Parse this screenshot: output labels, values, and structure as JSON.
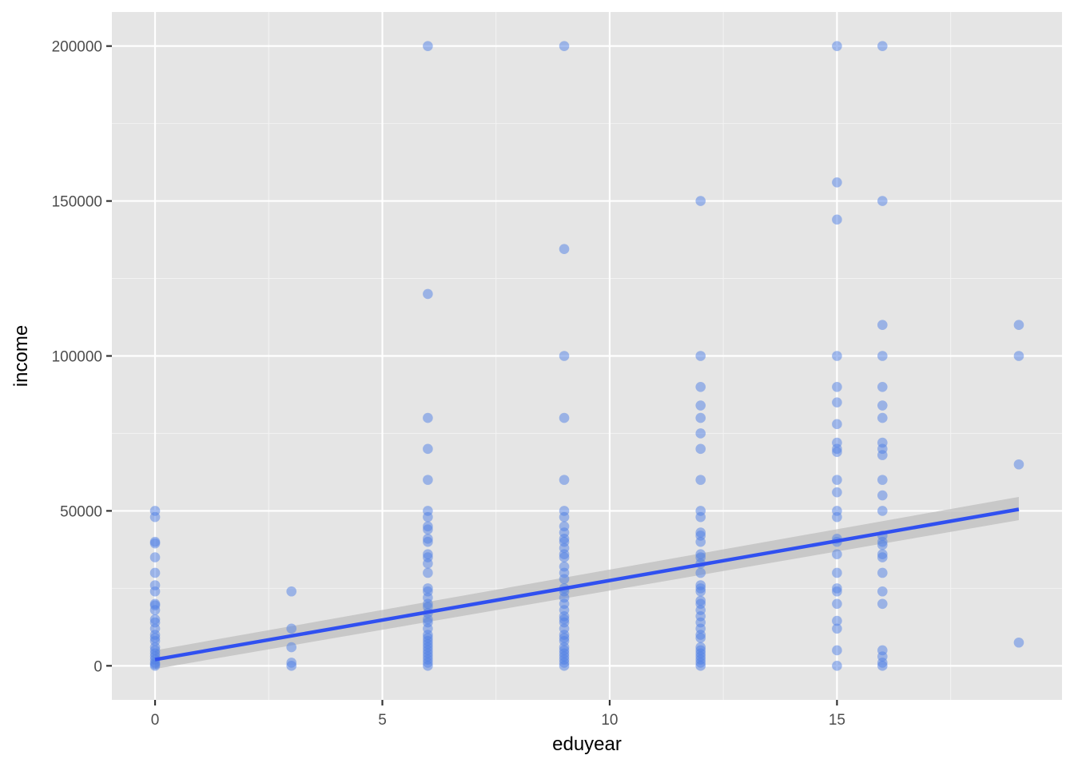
{
  "chart_data": {
    "type": "scatter",
    "xlabel": "eduyear",
    "ylabel": "income",
    "xlim": [
      -0.95,
      19.95
    ],
    "ylim": [
      -11000,
      211000
    ],
    "x_ticks": [
      0,
      5,
      10,
      15
    ],
    "x_tick_labels": [
      "0",
      "5",
      "10",
      "15"
    ],
    "y_ticks": [
      0,
      50000,
      100000,
      150000,
      200000
    ],
    "y_tick_labels": [
      "0",
      "50000",
      "100000",
      "150000",
      "200000"
    ],
    "grid": true,
    "legend": "none",
    "colors": {
      "panel": "#e5e5e5",
      "grid_major": "#ffffff",
      "point": "#4f7fe6",
      "fit_line": "#3050f0",
      "confidence_band": "#bdbdbd"
    },
    "points": [
      {
        "x": 0,
        "y": 50000
      },
      {
        "x": 0,
        "y": 48000
      },
      {
        "x": 0,
        "y": 40000
      },
      {
        "x": 0,
        "y": 39500
      },
      {
        "x": 0,
        "y": 35000
      },
      {
        "x": 0,
        "y": 30000
      },
      {
        "x": 0,
        "y": 26000
      },
      {
        "x": 0,
        "y": 24000
      },
      {
        "x": 0,
        "y": 20000
      },
      {
        "x": 0,
        "y": 19500
      },
      {
        "x": 0,
        "y": 18000
      },
      {
        "x": 0,
        "y": 15000
      },
      {
        "x": 0,
        "y": 14000
      },
      {
        "x": 0,
        "y": 12000
      },
      {
        "x": 0,
        "y": 10000
      },
      {
        "x": 0,
        "y": 9000
      },
      {
        "x": 0,
        "y": 8000
      },
      {
        "x": 0,
        "y": 6000
      },
      {
        "x": 0,
        "y": 5000
      },
      {
        "x": 0,
        "y": 4000
      },
      {
        "x": 0,
        "y": 3000
      },
      {
        "x": 0,
        "y": 2000
      },
      {
        "x": 0,
        "y": 1000
      },
      {
        "x": 0,
        "y": 500
      },
      {
        "x": 0,
        "y": 0
      },
      {
        "x": 3,
        "y": 24000
      },
      {
        "x": 3,
        "y": 12000
      },
      {
        "x": 3,
        "y": 6000
      },
      {
        "x": 3,
        "y": 1000
      },
      {
        "x": 3,
        "y": 0
      },
      {
        "x": 6,
        "y": 200000
      },
      {
        "x": 6,
        "y": 120000
      },
      {
        "x": 6,
        "y": 80000
      },
      {
        "x": 6,
        "y": 70000
      },
      {
        "x": 6,
        "y": 60000
      },
      {
        "x": 6,
        "y": 50000
      },
      {
        "x": 6,
        "y": 48000
      },
      {
        "x": 6,
        "y": 45000
      },
      {
        "x": 6,
        "y": 44000
      },
      {
        "x": 6,
        "y": 41000
      },
      {
        "x": 6,
        "y": 40000
      },
      {
        "x": 6,
        "y": 36000
      },
      {
        "x": 6,
        "y": 35000
      },
      {
        "x": 6,
        "y": 33000
      },
      {
        "x": 6,
        "y": 30000
      },
      {
        "x": 6,
        "y": 25000
      },
      {
        "x": 6,
        "y": 24000
      },
      {
        "x": 6,
        "y": 22000
      },
      {
        "x": 6,
        "y": 20000
      },
      {
        "x": 6,
        "y": 19000
      },
      {
        "x": 6,
        "y": 17000
      },
      {
        "x": 6,
        "y": 15000
      },
      {
        "x": 6,
        "y": 14000
      },
      {
        "x": 6,
        "y": 12000
      },
      {
        "x": 6,
        "y": 10000
      },
      {
        "x": 6,
        "y": 9000
      },
      {
        "x": 6,
        "y": 8000
      },
      {
        "x": 6,
        "y": 7000
      },
      {
        "x": 6,
        "y": 6000
      },
      {
        "x": 6,
        "y": 5000
      },
      {
        "x": 6,
        "y": 4000
      },
      {
        "x": 6,
        "y": 3000
      },
      {
        "x": 6,
        "y": 2000
      },
      {
        "x": 6,
        "y": 1000
      },
      {
        "x": 6,
        "y": 0
      },
      {
        "x": 9,
        "y": 200000
      },
      {
        "x": 9,
        "y": 134500
      },
      {
        "x": 9,
        "y": 100000
      },
      {
        "x": 9,
        "y": 80000
      },
      {
        "x": 9,
        "y": 60000
      },
      {
        "x": 9,
        "y": 50000
      },
      {
        "x": 9,
        "y": 48000
      },
      {
        "x": 9,
        "y": 45000
      },
      {
        "x": 9,
        "y": 43000
      },
      {
        "x": 9,
        "y": 41000
      },
      {
        "x": 9,
        "y": 40000
      },
      {
        "x": 9,
        "y": 38000
      },
      {
        "x": 9,
        "y": 36000
      },
      {
        "x": 9,
        "y": 35000
      },
      {
        "x": 9,
        "y": 32000
      },
      {
        "x": 9,
        "y": 30000
      },
      {
        "x": 9,
        "y": 28000
      },
      {
        "x": 9,
        "y": 25000
      },
      {
        "x": 9,
        "y": 24000
      },
      {
        "x": 9,
        "y": 22000
      },
      {
        "x": 9,
        "y": 20000
      },
      {
        "x": 9,
        "y": 18000
      },
      {
        "x": 9,
        "y": 16000
      },
      {
        "x": 9,
        "y": 15000
      },
      {
        "x": 9,
        "y": 14000
      },
      {
        "x": 9,
        "y": 12000
      },
      {
        "x": 9,
        "y": 10000
      },
      {
        "x": 9,
        "y": 9000
      },
      {
        "x": 9,
        "y": 8000
      },
      {
        "x": 9,
        "y": 6000
      },
      {
        "x": 9,
        "y": 5000
      },
      {
        "x": 9,
        "y": 4000
      },
      {
        "x": 9,
        "y": 3000
      },
      {
        "x": 9,
        "y": 2000
      },
      {
        "x": 9,
        "y": 1000
      },
      {
        "x": 9,
        "y": 0
      },
      {
        "x": 12,
        "y": 150000
      },
      {
        "x": 12,
        "y": 100000
      },
      {
        "x": 12,
        "y": 90000
      },
      {
        "x": 12,
        "y": 84000
      },
      {
        "x": 12,
        "y": 80000
      },
      {
        "x": 12,
        "y": 75000
      },
      {
        "x": 12,
        "y": 70000
      },
      {
        "x": 12,
        "y": 60000
      },
      {
        "x": 12,
        "y": 50000
      },
      {
        "x": 12,
        "y": 48000
      },
      {
        "x": 12,
        "y": 43000
      },
      {
        "x": 12,
        "y": 42000
      },
      {
        "x": 12,
        "y": 40000
      },
      {
        "x": 12,
        "y": 36000
      },
      {
        "x": 12,
        "y": 35000
      },
      {
        "x": 12,
        "y": 33000
      },
      {
        "x": 12,
        "y": 30000
      },
      {
        "x": 12,
        "y": 26000
      },
      {
        "x": 12,
        "y": 25000
      },
      {
        "x": 12,
        "y": 24000
      },
      {
        "x": 12,
        "y": 21000
      },
      {
        "x": 12,
        "y": 20000
      },
      {
        "x": 12,
        "y": 18000
      },
      {
        "x": 12,
        "y": 16000
      },
      {
        "x": 12,
        "y": 14000
      },
      {
        "x": 12,
        "y": 12000
      },
      {
        "x": 12,
        "y": 10000
      },
      {
        "x": 12,
        "y": 9000
      },
      {
        "x": 12,
        "y": 6000
      },
      {
        "x": 12,
        "y": 5000
      },
      {
        "x": 12,
        "y": 4000
      },
      {
        "x": 12,
        "y": 3000
      },
      {
        "x": 12,
        "y": 2000
      },
      {
        "x": 12,
        "y": 1000
      },
      {
        "x": 12,
        "y": 0
      },
      {
        "x": 15,
        "y": 200000
      },
      {
        "x": 15,
        "y": 156000
      },
      {
        "x": 15,
        "y": 144000
      },
      {
        "x": 15,
        "y": 100000
      },
      {
        "x": 15,
        "y": 90000
      },
      {
        "x": 15,
        "y": 85000
      },
      {
        "x": 15,
        "y": 78000
      },
      {
        "x": 15,
        "y": 72000
      },
      {
        "x": 15,
        "y": 70000
      },
      {
        "x": 15,
        "y": 69000
      },
      {
        "x": 15,
        "y": 60000
      },
      {
        "x": 15,
        "y": 56000
      },
      {
        "x": 15,
        "y": 50000
      },
      {
        "x": 15,
        "y": 48000
      },
      {
        "x": 15,
        "y": 41000
      },
      {
        "x": 15,
        "y": 40000
      },
      {
        "x": 15,
        "y": 36000
      },
      {
        "x": 15,
        "y": 30000
      },
      {
        "x": 15,
        "y": 25000
      },
      {
        "x": 15,
        "y": 24000
      },
      {
        "x": 15,
        "y": 20000
      },
      {
        "x": 15,
        "y": 14500
      },
      {
        "x": 15,
        "y": 12000
      },
      {
        "x": 15,
        "y": 5000
      },
      {
        "x": 15,
        "y": 0
      },
      {
        "x": 16,
        "y": 200000
      },
      {
        "x": 16,
        "y": 150000
      },
      {
        "x": 16,
        "y": 110000
      },
      {
        "x": 16,
        "y": 100000
      },
      {
        "x": 16,
        "y": 90000
      },
      {
        "x": 16,
        "y": 84000
      },
      {
        "x": 16,
        "y": 80000
      },
      {
        "x": 16,
        "y": 72000
      },
      {
        "x": 16,
        "y": 70000
      },
      {
        "x": 16,
        "y": 68000
      },
      {
        "x": 16,
        "y": 60000
      },
      {
        "x": 16,
        "y": 55000
      },
      {
        "x": 16,
        "y": 50000
      },
      {
        "x": 16,
        "y": 42000
      },
      {
        "x": 16,
        "y": 40000
      },
      {
        "x": 16,
        "y": 39000
      },
      {
        "x": 16,
        "y": 36000
      },
      {
        "x": 16,
        "y": 35000
      },
      {
        "x": 16,
        "y": 30000
      },
      {
        "x": 16,
        "y": 24000
      },
      {
        "x": 16,
        "y": 20000
      },
      {
        "x": 16,
        "y": 5000
      },
      {
        "x": 16,
        "y": 3000
      },
      {
        "x": 16,
        "y": 1000
      },
      {
        "x": 16,
        "y": 0
      },
      {
        "x": 19,
        "y": 110000
      },
      {
        "x": 19,
        "y": 100000
      },
      {
        "x": 19,
        "y": 65000
      },
      {
        "x": 19,
        "y": 7500
      }
    ],
    "fit_line": {
      "method": "lm",
      "x": [
        0,
        19
      ],
      "y": [
        2000,
        50500
      ],
      "ci_lower": [
        -1000,
        47000
      ],
      "ci_upper": [
        5000,
        54500
      ]
    }
  }
}
